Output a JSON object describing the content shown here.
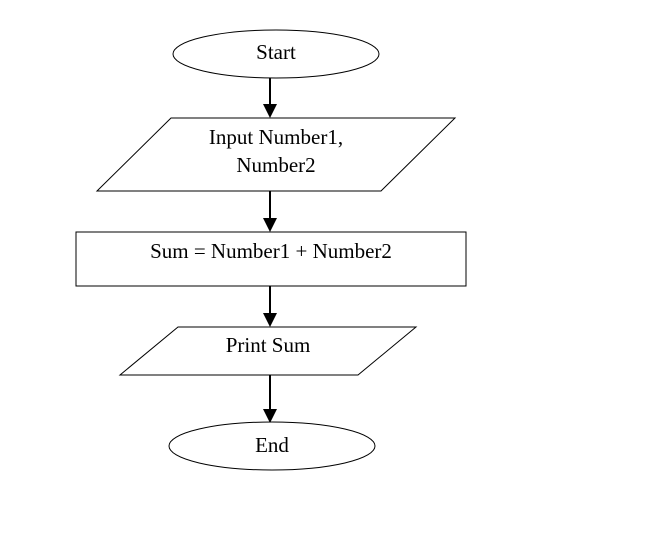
{
  "flowchart": {
    "start": {
      "label": "Start"
    },
    "input": {
      "line1": "Input Number1,",
      "line2": "Number2"
    },
    "process": {
      "label": "Sum = Number1  + Number2"
    },
    "output": {
      "label": "Print Sum"
    },
    "end": {
      "label": "End"
    }
  },
  "colors": {
    "stroke": "#000000",
    "fill": "#ffffff",
    "text": "#000000"
  }
}
